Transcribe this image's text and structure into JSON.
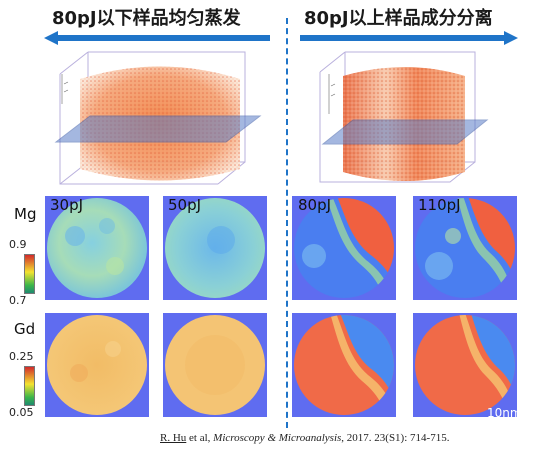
{
  "header": {
    "left_title": "80pJ以下样品均匀蒸发",
    "right_title": "80pJ以上样品成分分离",
    "arrow_color": "#1f74c8"
  },
  "rows": [
    {
      "element": "Mg",
      "scale_max": "0.9",
      "scale_min": "0.7"
    },
    {
      "element": "Gd",
      "scale_max": "0.25",
      "scale_min": "0.05"
    }
  ],
  "panels": [
    {
      "label": "30pJ"
    },
    {
      "label": "50pJ"
    },
    {
      "label": "80pJ"
    },
    {
      "label": "110pJ"
    }
  ],
  "scale_bar": "10nm",
  "citation": {
    "author": "R. Hu",
    "rest_before_journal": " et al, ",
    "journal": "Microscopy & Microanalysis",
    "rest_after_journal": ", 2017. 23(S1): 714-715."
  },
  "colors": {
    "map_background": "#5f6cf0",
    "uniform_mg": "#8fd3c8",
    "uniform_gd": "#f2c06a",
    "rich_red": "#f06040",
    "depleted_blue": "#4a7ef0"
  }
}
